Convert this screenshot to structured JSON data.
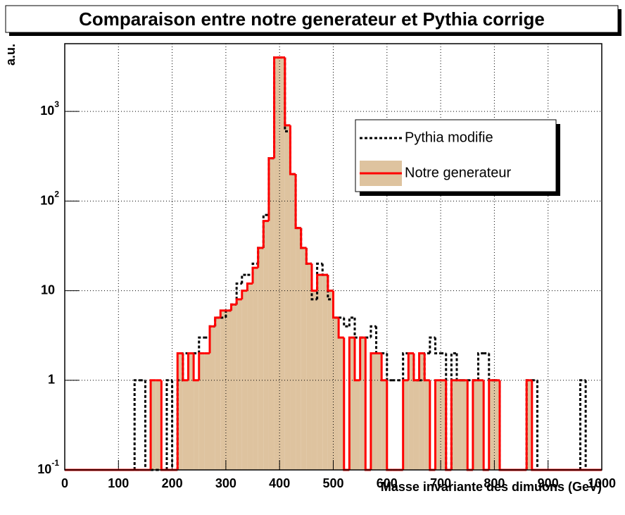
{
  "chart_data": {
    "type": "histogram",
    "title": "Comparaison entre notre generateur et Pythia corrige",
    "xlabel": "Masse invariante des dimuons (GeV)",
    "ylabel": "a.u.",
    "log_y": true,
    "grid": true,
    "legend": "top-right",
    "bins": [
      0,
      10,
      20,
      30,
      40,
      50,
      60,
      70,
      80,
      90,
      100,
      110,
      120,
      130,
      140,
      150,
      160,
      170,
      180,
      190,
      200,
      210,
      220,
      230,
      240,
      250,
      260,
      270,
      280,
      290,
      300,
      310,
      320,
      330,
      340,
      350,
      360,
      370,
      380,
      390,
      400,
      410,
      420,
      430,
      440,
      450,
      460,
      470,
      480,
      490,
      500,
      510,
      520,
      530,
      540,
      550,
      560,
      570,
      580,
      590,
      600,
      610,
      620,
      630,
      640,
      650,
      660,
      670,
      680,
      690,
      700,
      710,
      720,
      730,
      740,
      750,
      760,
      770,
      780,
      790,
      800,
      810,
      820,
      830,
      840,
      850,
      860,
      870,
      880,
      890,
      900,
      910,
      920,
      930,
      940,
      950,
      960,
      970,
      980,
      990,
      1000
    ],
    "series": [
      {
        "name": "Pythia modifie",
        "color": "#000000",
        "style": "dashed",
        "values": [
          0,
          0,
          0,
          0,
          0,
          0,
          0,
          0,
          0,
          0,
          0,
          0,
          0,
          1,
          1,
          0,
          0,
          0,
          0,
          1,
          0,
          1,
          2,
          2,
          2,
          3,
          3,
          4,
          5,
          5,
          6,
          7,
          12,
          15,
          15,
          20,
          30,
          70,
          300,
          4000,
          4000,
          600,
          200,
          50,
          30,
          20,
          8,
          20,
          15,
          8,
          5,
          5,
          4,
          5,
          3,
          3,
          3,
          4,
          2,
          2,
          1,
          1,
          1,
          2,
          2,
          1,
          1,
          2,
          3,
          2,
          2,
          0,
          2,
          1,
          1,
          1,
          1,
          2,
          2,
          1,
          1,
          0,
          0,
          0,
          0,
          0,
          1,
          1,
          0,
          0,
          0,
          0,
          0,
          0,
          0,
          0,
          1,
          0,
          0,
          0
        ]
      },
      {
        "name": "Notre generateur",
        "color": "#ff0000",
        "fill": "#d8b98e",
        "style": "solid",
        "values": [
          0,
          0,
          0,
          0,
          0,
          0,
          0,
          0,
          0,
          0,
          0,
          0,
          0,
          0,
          0,
          0,
          1,
          1,
          0,
          0,
          0,
          2,
          1,
          2,
          1,
          2,
          2,
          4,
          5,
          6,
          6,
          7,
          8,
          10,
          12,
          18,
          30,
          60,
          300,
          4000,
          4000,
          700,
          200,
          50,
          30,
          20,
          10,
          15,
          15,
          10,
          5,
          3,
          0,
          3,
          1,
          3,
          0,
          2,
          2,
          1,
          0,
          0,
          0,
          1,
          2,
          1,
          2,
          1,
          0,
          1,
          1,
          0,
          1,
          1,
          1,
          0,
          1,
          1,
          0,
          1,
          1,
          0,
          0,
          0,
          0,
          0,
          1,
          0,
          0,
          0,
          0,
          0,
          0,
          0,
          0,
          0,
          0,
          0,
          0,
          0
        ]
      }
    ],
    "xlim": [
      0,
      1000
    ],
    "xticks": [
      0,
      100,
      200,
      300,
      400,
      500,
      600,
      700,
      800,
      900,
      1000
    ],
    "ylim": [
      0.1,
      5700
    ],
    "yticks": [
      {
        "value": 0.1,
        "label": "10^-1"
      },
      1,
      10,
      {
        "value": 100,
        "label": "10^2"
      },
      {
        "value": 1000,
        "label": "10^3"
      }
    ]
  }
}
